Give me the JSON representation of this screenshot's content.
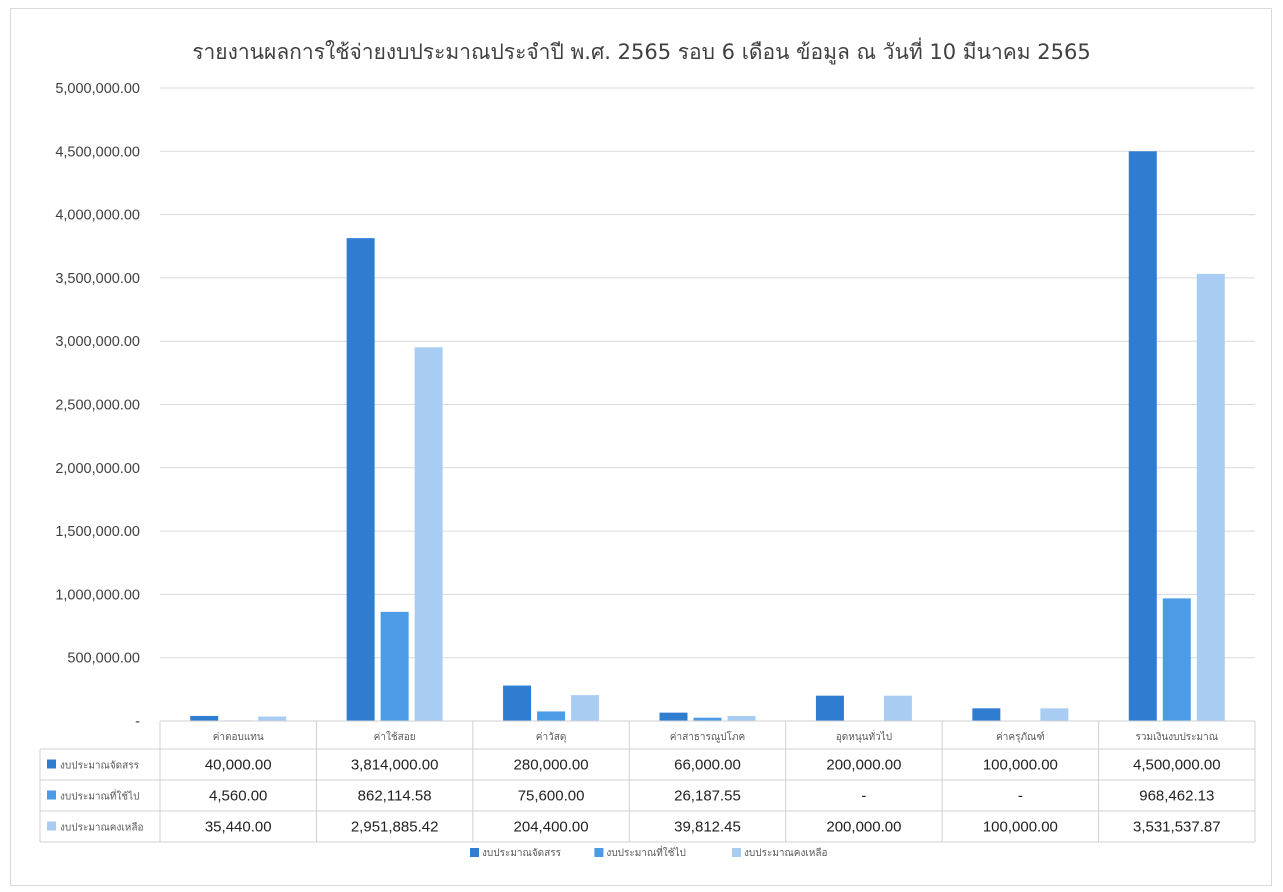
{
  "chart_data": {
    "type": "bar",
    "title": "รายงานผลการใช้จ่ายงบประมาณประจำปี พ.ศ. 2565 รอบ 6 เดือน ข้อมูล ณ วันที่ 10 มีนาคม 2565",
    "categories": [
      "ค่าตอบแทน",
      "ค่าใช้สอย",
      "ค่าวัสดุ",
      "ค่าสาธารณูปโภค",
      "อุดหนุนทั่วไป",
      "ค่าครุภัณฑ์",
      "รวมเงินงบประมาณ"
    ],
    "series": [
      {
        "name": "งบประมาณจัดสรร",
        "color": "#2e7dd1",
        "values": [
          40000.0,
          3814000.0,
          280000.0,
          66000.0,
          200000.0,
          100000.0,
          4500000.0
        ],
        "labels": [
          "40,000.00",
          "3,814,000.00",
          "280,000.00",
          "66,000.00",
          "200,000.00",
          "100,000.00",
          "4,500,000.00"
        ]
      },
      {
        "name": "งบประมาณที่ใช้ไป",
        "color": "#4b9be6",
        "values": [
          4560.0,
          862114.58,
          75600.0,
          26187.55,
          0,
          0,
          968462.13
        ],
        "labels": [
          "4,560.00",
          "862,114.58",
          "75,600.00",
          "26,187.55",
          "-",
          "-",
          "968,462.13"
        ]
      },
      {
        "name": "งบประมาณคงเหลือ",
        "color": "#a9cdf2",
        "values": [
          35440.0,
          2951885.42,
          204400.0,
          39812.45,
          200000.0,
          100000.0,
          3531537.87
        ],
        "labels": [
          "35,440.00",
          "2,951,885.42",
          "204,400.00",
          "39,812.45",
          "200,000.00",
          "100,000.00",
          "3,531,537.87"
        ]
      }
    ],
    "ylim": [
      0,
      5000000
    ],
    "yticks": [
      "-",
      "500,000.00",
      "1,000,000.00",
      "1,500,000.00",
      "2,000,000.00",
      "2,500,000.00",
      "3,000,000.00",
      "3,500,000.00",
      "4,000,000.00",
      "4,500,000.00",
      "5,000,000.00"
    ],
    "grid": true,
    "legend": "bottom",
    "data_table": true
  }
}
